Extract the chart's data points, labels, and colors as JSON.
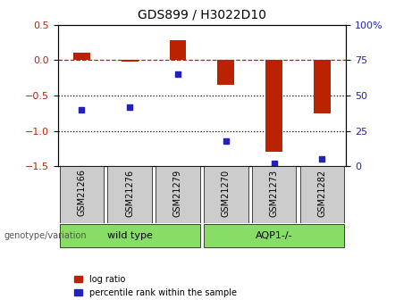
{
  "title": "GDS899 / H3022D10",
  "samples": [
    "GSM21266",
    "GSM21276",
    "GSM21279",
    "GSM21270",
    "GSM21273",
    "GSM21282"
  ],
  "log_ratios": [
    0.1,
    -0.02,
    0.28,
    -0.35,
    -1.3,
    -0.75
  ],
  "percentile_ranks": [
    40,
    42,
    65,
    18,
    2,
    5
  ],
  "groups": [
    {
      "label": "wild type",
      "start": 0,
      "end": 3
    },
    {
      "label": "AQP1-/-",
      "start": 3,
      "end": 6
    }
  ],
  "bar_color": "#bb2200",
  "dot_color": "#2222bb",
  "left_ylim": [
    -1.5,
    0.5
  ],
  "right_ylim": [
    0,
    100
  ],
  "left_yticks": [
    -1.5,
    -1.0,
    -0.5,
    0.0,
    0.5
  ],
  "right_yticks": [
    0,
    25,
    50,
    75,
    100
  ],
  "right_yticklabels": [
    "0",
    "25",
    "50",
    "75",
    "100%"
  ],
  "group_color": "#88dd66",
  "group_box_color": "#cccccc",
  "background_color": "#ffffff",
  "legend_log_ratio": "log ratio",
  "legend_percentile": "percentile rank within the sample",
  "genotype_label": "genotype/variation"
}
